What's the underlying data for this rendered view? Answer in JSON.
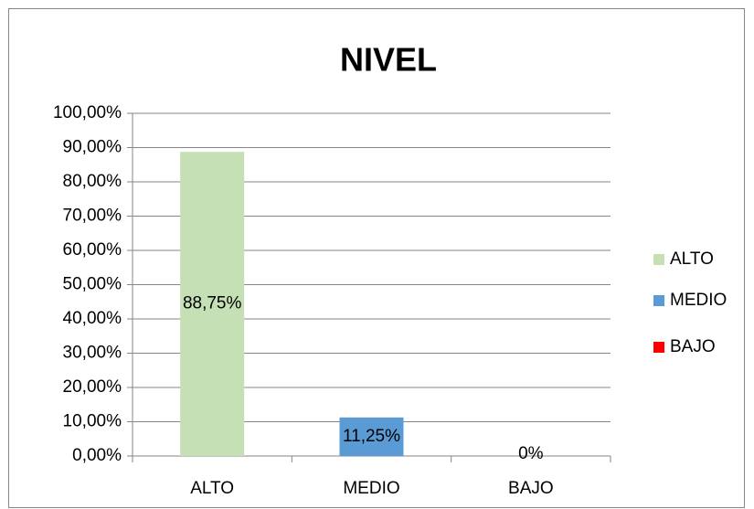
{
  "chart_data": {
    "type": "bar",
    "title": "NIVEL",
    "categories": [
      "ALTO",
      "MEDIO",
      "BAJO"
    ],
    "values": [
      88.75,
      11.25,
      0
    ],
    "value_labels": [
      "88,75%",
      "11,25%",
      "0%"
    ],
    "colors": [
      "#c5e0b4",
      "#5b9bd5",
      "#ff0000"
    ],
    "ylim": [
      0,
      100
    ],
    "yticks": [
      {
        "value": 0,
        "label": "0,00%"
      },
      {
        "value": 10,
        "label": "10,00%"
      },
      {
        "value": 20,
        "label": "20,00%"
      },
      {
        "value": 30,
        "label": "30,00%"
      },
      {
        "value": 40,
        "label": "40,00%"
      },
      {
        "value": 50,
        "label": "50,00%"
      },
      {
        "value": 60,
        "label": "60,00%"
      },
      {
        "value": 70,
        "label": "70,00%"
      },
      {
        "value": 80,
        "label": "80,00%"
      },
      {
        "value": 90,
        "label": "90,00%"
      },
      {
        "value": 100,
        "label": "100,00%"
      }
    ],
    "grid": true,
    "legend": "right"
  }
}
